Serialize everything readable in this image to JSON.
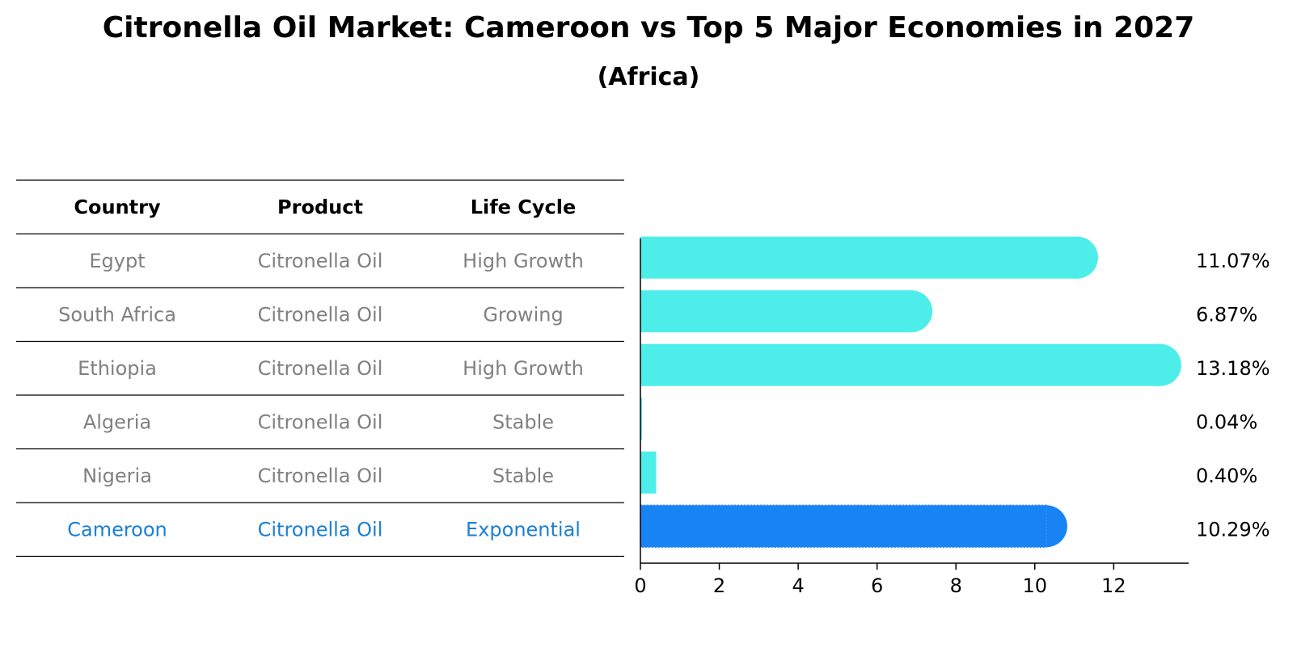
{
  "title": "Citronella Oil Market: Cameroon vs Top 5 Major Economies in 2027",
  "subtitle": "(Africa)",
  "colors": {
    "bar": "#4deee9",
    "highlight_bar": "#1783f5",
    "highlight_text": "#1b7fd4",
    "row_text": "#808080"
  },
  "table": {
    "headers": [
      "Country",
      "Product",
      "Life Cycle"
    ],
    "rows": [
      {
        "country": "Egypt",
        "product": "Citronella Oil",
        "life_cycle": "High Growth",
        "highlight": false
      },
      {
        "country": "South Africa",
        "product": "Citronella Oil",
        "life_cycle": "Growing",
        "highlight": false
      },
      {
        "country": "Ethiopia",
        "product": "Citronella Oil",
        "life_cycle": "High Growth",
        "highlight": false
      },
      {
        "country": "Algeria",
        "product": "Citronella Oil",
        "life_cycle": "Stable",
        "highlight": false
      },
      {
        "country": "Nigeria",
        "product": "Citronella Oil",
        "life_cycle": "Stable",
        "highlight": false
      },
      {
        "country": "Cameroon",
        "product": "Citronella Oil",
        "life_cycle": "Exponential",
        "highlight": true
      }
    ]
  },
  "chart_data": {
    "type": "bar",
    "orientation": "horizontal",
    "categories": [
      "Egypt",
      "South Africa",
      "Ethiopia",
      "Algeria",
      "Nigeria",
      "Cameroon"
    ],
    "values": [
      11.07,
      6.87,
      13.18,
      0.04,
      0.4,
      10.29
    ],
    "value_labels": [
      "11.07%",
      "6.87%",
      "13.18%",
      "0.04%",
      "0.40%",
      "10.29%"
    ],
    "highlight_category": "Cameroon",
    "xlim": [
      0,
      13.9
    ],
    "xticks": [
      0,
      2,
      4,
      6,
      8,
      10,
      12
    ],
    "xlabel": "",
    "ylabel": "",
    "grid": false
  }
}
